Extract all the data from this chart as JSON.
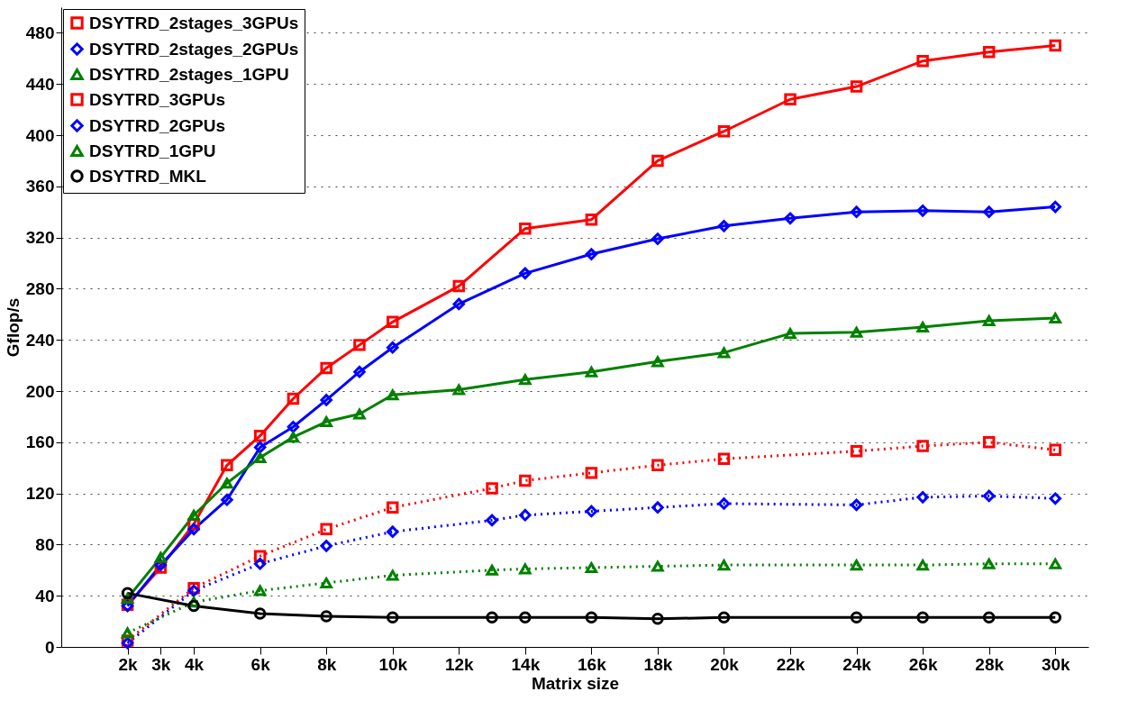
{
  "chart_data": {
    "type": "line",
    "xlabel": "Matrix size",
    "ylabel": "Gflop/s",
    "xlim": [
      0,
      31000
    ],
    "ylim": [
      0,
      500
    ],
    "xticks": [
      {
        "value": 2000,
        "label": "2k"
      },
      {
        "value": 3000,
        "label": "3k"
      },
      {
        "value": 4000,
        "label": "4k"
      },
      {
        "value": 6000,
        "label": "6k"
      },
      {
        "value": 8000,
        "label": "8k"
      },
      {
        "value": 10000,
        "label": "10k"
      },
      {
        "value": 12000,
        "label": "12k"
      },
      {
        "value": 14000,
        "label": "14k"
      },
      {
        "value": 16000,
        "label": "16k"
      },
      {
        "value": 18000,
        "label": "18k"
      },
      {
        "value": 20000,
        "label": "20k"
      },
      {
        "value": 22000,
        "label": "22k"
      },
      {
        "value": 24000,
        "label": "24k"
      },
      {
        "value": 26000,
        "label": "26k"
      },
      {
        "value": 28000,
        "label": "28k"
      },
      {
        "value": 30000,
        "label": "30k"
      }
    ],
    "yticks": [
      0,
      40,
      80,
      120,
      160,
      200,
      240,
      280,
      320,
      360,
      400,
      440,
      480
    ],
    "grid": "y",
    "legend": "top left",
    "series": [
      {
        "name": "DSYTRD_2stages_3GPUs",
        "color": "#ff0000",
        "marker": "square",
        "line_style": "solid",
        "x": [
          2000,
          3000,
          4000,
          5000,
          6000,
          7000,
          8000,
          9000,
          10000,
          12000,
          14000,
          16000,
          18000,
          20000,
          22000,
          24000,
          26000,
          28000,
          30000
        ],
        "values": [
          33,
          62,
          96,
          142,
          165,
          194,
          218,
          236,
          254,
          282,
          327,
          334,
          380,
          403,
          428,
          438,
          458,
          465,
          470
        ]
      },
      {
        "name": "DSYTRD_2stages_2GPUs",
        "color": "#0000ff",
        "marker": "diamond",
        "line_style": "solid",
        "x": [
          2000,
          3000,
          4000,
          5000,
          6000,
          7000,
          8000,
          9000,
          10000,
          12000,
          14000,
          16000,
          18000,
          20000,
          22000,
          24000,
          26000,
          28000,
          30000
        ],
        "values": [
          32,
          64,
          92,
          115,
          156,
          172,
          193,
          215,
          234,
          268,
          292,
          307,
          319,
          329,
          335,
          340,
          341,
          340,
          344
        ]
      },
      {
        "name": "DSYTRD_2stages_1GPU",
        "color": "#008000",
        "marker": "triangle",
        "line_style": "solid",
        "x": [
          2000,
          3000,
          4000,
          5000,
          6000,
          7000,
          8000,
          9000,
          10000,
          12000,
          14000,
          16000,
          18000,
          20000,
          22000,
          24000,
          26000,
          28000,
          30000
        ],
        "values": [
          38,
          70,
          103,
          128,
          148,
          164,
          176,
          182,
          197,
          201,
          209,
          215,
          223,
          230,
          245,
          246,
          250,
          255,
          257
        ]
      },
      {
        "name": "DSYTRD_3GPUs",
        "color": "#ff0000",
        "marker": "square",
        "line_style": "dotted",
        "x": [
          2000,
          4000,
          6000,
          8000,
          10000,
          13000,
          14000,
          16000,
          18000,
          20000,
          24000,
          26000,
          28000,
          30000
        ],
        "values": [
          5,
          46,
          71,
          92,
          109,
          124,
          130,
          136,
          142,
          147,
          153,
          157,
          160,
          154
        ]
      },
      {
        "name": "DSYTRD_2GPUs",
        "color": "#0000ff",
        "marker": "diamond",
        "line_style": "dotted",
        "x": [
          2000,
          4000,
          6000,
          8000,
          10000,
          13000,
          14000,
          16000,
          18000,
          20000,
          24000,
          26000,
          28000,
          30000
        ],
        "values": [
          3,
          44,
          65,
          79,
          90,
          99,
          103,
          106,
          109,
          112,
          111,
          117,
          118,
          116
        ]
      },
      {
        "name": "DSYTRD_1GPU",
        "color": "#008000",
        "marker": "triangle",
        "line_style": "dotted",
        "x": [
          2000,
          4000,
          6000,
          8000,
          10000,
          13000,
          14000,
          16000,
          18000,
          20000,
          24000,
          26000,
          28000,
          30000
        ],
        "values": [
          11,
          35,
          44,
          50,
          56,
          60,
          61,
          62,
          63,
          64,
          64,
          64,
          65,
          65
        ]
      },
      {
        "name": "DSYTRD_MKL",
        "color": "#000000",
        "marker": "circle",
        "line_style": "solid",
        "x": [
          2000,
          4000,
          6000,
          8000,
          10000,
          13000,
          14000,
          16000,
          18000,
          20000,
          24000,
          26000,
          28000,
          30000
        ],
        "values": [
          42,
          32,
          26,
          24,
          23,
          23,
          23,
          23,
          22,
          23,
          23,
          23,
          23,
          23
        ]
      }
    ]
  }
}
